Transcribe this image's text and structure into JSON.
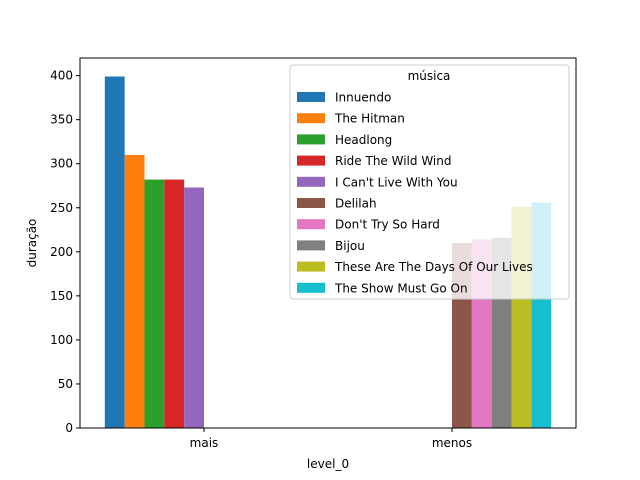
{
  "chart_data": {
    "type": "bar",
    "categories": [
      "mais",
      "menos"
    ],
    "xlabel": "level_0",
    "ylabel": "duração",
    "ylim": [
      0,
      420
    ],
    "yticks": [
      0,
      50,
      100,
      150,
      200,
      250,
      300,
      350,
      400
    ],
    "grid": false,
    "legend": {
      "title": "música",
      "placement": "upper right"
    },
    "series": [
      {
        "name": "Innuendo",
        "color": "#1f77b4",
        "values": [
          399,
          null
        ]
      },
      {
        "name": "The Hitman",
        "color": "#ff7f0e",
        "values": [
          310,
          null
        ]
      },
      {
        "name": "Headlong",
        "color": "#2ca02c",
        "values": [
          282,
          null
        ]
      },
      {
        "name": "Ride The Wild Wind",
        "color": "#d62728",
        "values": [
          282,
          null
        ]
      },
      {
        "name": "I Can't Live With You",
        "color": "#9467bd",
        "values": [
          273,
          null
        ]
      },
      {
        "name": "Delilah",
        "color": "#8c564b",
        "values": [
          null,
          210
        ]
      },
      {
        "name": "Don't Try So Hard",
        "color": "#e377c2",
        "values": [
          null,
          214
        ]
      },
      {
        "name": "Bijou",
        "color": "#7f7f7f",
        "values": [
          null,
          216
        ]
      },
      {
        "name": "These Are The Days Of Our Lives",
        "color": "#bcbd22",
        "values": [
          null,
          251
        ]
      },
      {
        "name": "The Show Must Go On",
        "color": "#17becf",
        "values": [
          null,
          256
        ]
      }
    ]
  }
}
